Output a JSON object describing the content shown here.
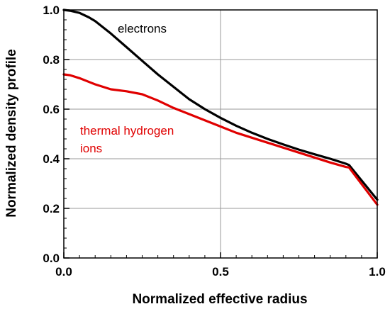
{
  "chart_data": {
    "type": "line",
    "title": "",
    "xlabel": "Normalized effective radius",
    "ylabel": "Normalized density profile",
    "xlim": [
      0.0,
      1.0
    ],
    "ylim": [
      0.0,
      1.0
    ],
    "grid": true,
    "x_ticks": [
      {
        "value": 0.0,
        "label": "0.0"
      },
      {
        "value": 0.5,
        "label": "0.5"
      },
      {
        "value": 1.0,
        "label": "1.0"
      }
    ],
    "y_ticks": [
      {
        "value": 0.0,
        "label": "0.0"
      },
      {
        "value": 0.2,
        "label": "0.2"
      },
      {
        "value": 0.4,
        "label": "0.4"
      },
      {
        "value": 0.6,
        "label": "0.6"
      },
      {
        "value": 0.8,
        "label": "0.8"
      },
      {
        "value": 1.0,
        "label": "1.0"
      }
    ],
    "series": [
      {
        "name": "electrons",
        "color": "#000000",
        "x": [
          0.0,
          0.02,
          0.05,
          0.08,
          0.1,
          0.15,
          0.2,
          0.25,
          0.3,
          0.35,
          0.4,
          0.45,
          0.5,
          0.55,
          0.6,
          0.65,
          0.7,
          0.75,
          0.8,
          0.85,
          0.9,
          0.91,
          1.0
        ],
        "y": [
          1.0,
          0.997,
          0.988,
          0.97,
          0.955,
          0.905,
          0.85,
          0.795,
          0.74,
          0.69,
          0.64,
          0.6,
          0.565,
          0.533,
          0.505,
          0.48,
          0.458,
          0.437,
          0.418,
          0.4,
          0.38,
          0.375,
          0.235
        ]
      },
      {
        "name": "thermal hydrogen ions",
        "label_lines": [
          "thermal hydrogen",
          "ions"
        ],
        "color": "#e00000",
        "x": [
          0.0,
          0.02,
          0.05,
          0.1,
          0.15,
          0.2,
          0.25,
          0.3,
          0.35,
          0.4,
          0.45,
          0.5,
          0.55,
          0.6,
          0.65,
          0.7,
          0.75,
          0.8,
          0.85,
          0.9,
          0.91,
          1.0
        ],
        "y": [
          0.74,
          0.737,
          0.725,
          0.7,
          0.68,
          0.672,
          0.66,
          0.635,
          0.605,
          0.58,
          0.555,
          0.53,
          0.505,
          0.485,
          0.465,
          0.445,
          0.425,
          0.405,
          0.385,
          0.367,
          0.365,
          0.215
        ]
      }
    ]
  }
}
